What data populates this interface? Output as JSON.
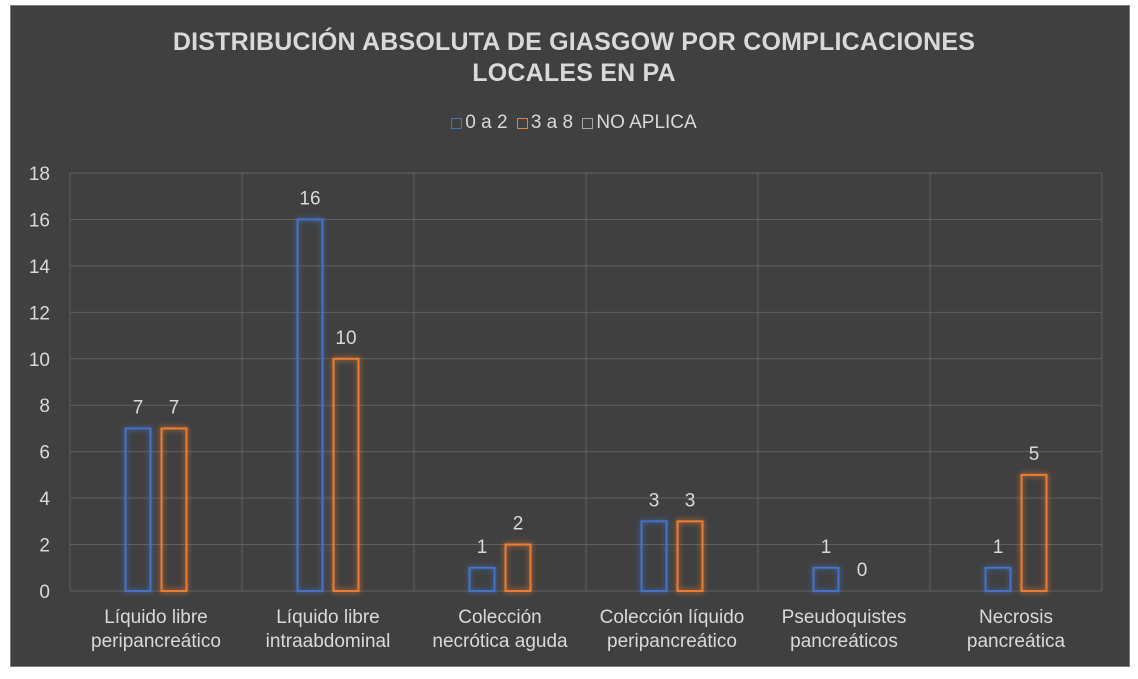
{
  "chart_data": {
    "type": "bar",
    "title_line1": "DISTRIBUCIÓN ABSOLUTA DE GIASGOW POR COMPLICACIONES",
    "title_line2": "LOCALES EN PA",
    "categories": [
      [
        "Líquido libre",
        "peripancreático"
      ],
      [
        "Líquido libre",
        "intraabdominal"
      ],
      [
        "Colección",
        "necrótica aguda"
      ],
      [
        "Colección líquido",
        "peripancreático"
      ],
      [
        "Pseudoquistes",
        "pancreáticos"
      ],
      [
        "Necrosis",
        "pancreática"
      ]
    ],
    "series": [
      {
        "name": "0 a 2",
        "color": "#4472c4",
        "values": [
          7,
          16,
          1,
          3,
          1,
          1
        ]
      },
      {
        "name": "3 a 8",
        "color": "#ed7d31",
        "values": [
          7,
          10,
          2,
          3,
          0,
          5
        ]
      },
      {
        "name": "NO APLICA",
        "color": "#a5a5a5",
        "values": [
          null,
          null,
          null,
          null,
          null,
          null
        ]
      }
    ],
    "ylim": [
      0,
      18
    ],
    "yticks": [
      0,
      2,
      4,
      6,
      8,
      10,
      12,
      14,
      16,
      18
    ],
    "grid": true,
    "legend_position": "top"
  }
}
